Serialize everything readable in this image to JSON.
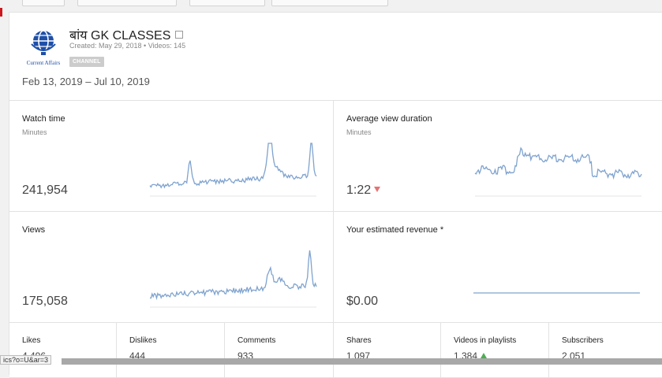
{
  "channel": {
    "name": "बांय GK CLASSES",
    "meta": "Created: May 29, 2018  •  Videos: 145",
    "badge": "CHANNEL",
    "logo_text": "Current Affairs"
  },
  "date_range": "Feb 13, 2019 – Jul 10, 2019",
  "cards": {
    "watch_time": {
      "title": "Watch time",
      "unit": "Minutes",
      "value": "241,954"
    },
    "avg_view_duration": {
      "title": "Average view duration",
      "unit": "Minutes",
      "value": "1:22",
      "trend": "down"
    },
    "views": {
      "title": "Views",
      "value": "175,058"
    },
    "revenue": {
      "title": "Your estimated revenue *",
      "value": "$0.00"
    }
  },
  "stats": [
    {
      "label": "Likes",
      "value": "4,496"
    },
    {
      "label": "Dislikes",
      "value": "444"
    },
    {
      "label": "Comments",
      "value": "933"
    },
    {
      "label": "Shares",
      "value": "1,097"
    },
    {
      "label": "Videos in playlists",
      "value": "1,384",
      "trend": "up"
    },
    {
      "label": "Subscribers",
      "value": "2,051"
    }
  ],
  "status_url": "ics?o=U&ar=3",
  "colors": {
    "line": "#7fa3cf",
    "trend_down": "#e57373",
    "trend_up": "#4caf50",
    "brand_red": "#cc181e"
  }
}
